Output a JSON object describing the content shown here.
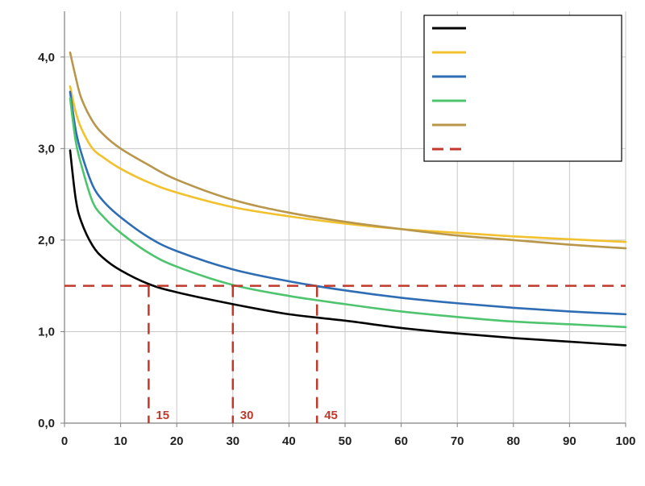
{
  "chart_data": {
    "type": "line",
    "title": "",
    "xlabel": "",
    "ylabel": "",
    "xlim": [
      0,
      100
    ],
    "ylim": [
      0,
      4.5
    ],
    "x_ticks": [
      0,
      10,
      20,
      30,
      40,
      50,
      60,
      70,
      80,
      90,
      100
    ],
    "x_tick_labels": [
      "0",
      "10",
      "20",
      "30",
      "40",
      "50",
      "60",
      "70",
      "80",
      "90",
      "100"
    ],
    "y_ticks": [
      0,
      1,
      2,
      3,
      4
    ],
    "y_tick_labels": [
      "0,0",
      "1,0",
      "2,0",
      "3,0",
      "4,0"
    ],
    "grid": true,
    "legend_position": "top-right",
    "x": [
      1,
      2,
      3,
      5,
      7,
      10,
      15,
      20,
      30,
      40,
      50,
      60,
      70,
      80,
      90,
      100
    ],
    "series": [
      {
        "color": "#000000",
        "style": "solid",
        "values": [
          2.98,
          2.45,
          2.2,
          1.94,
          1.8,
          1.67,
          1.52,
          1.43,
          1.3,
          1.19,
          1.12,
          1.04,
          0.98,
          0.93,
          0.89,
          0.85
        ]
      },
      {
        "color": "#f2c12e",
        "style": "solid",
        "values": [
          3.68,
          3.4,
          3.22,
          3.0,
          2.9,
          2.78,
          2.63,
          2.52,
          2.36,
          2.26,
          2.18,
          2.12,
          2.08,
          2.04,
          2.01,
          1.98
        ]
      },
      {
        "color": "#2e6db4",
        "style": "solid",
        "values": [
          3.62,
          3.2,
          2.95,
          2.6,
          2.42,
          2.25,
          2.03,
          1.88,
          1.68,
          1.55,
          1.45,
          1.37,
          1.31,
          1.26,
          1.22,
          1.19
        ]
      },
      {
        "color": "#4fc46f",
        "style": "solid",
        "values": [
          3.55,
          3.08,
          2.82,
          2.42,
          2.25,
          2.08,
          1.86,
          1.71,
          1.51,
          1.39,
          1.3,
          1.22,
          1.16,
          1.11,
          1.08,
          1.05
        ]
      },
      {
        "color": "#b8964a",
        "style": "solid",
        "values": [
          4.05,
          3.78,
          3.55,
          3.3,
          3.15,
          3.0,
          2.82,
          2.66,
          2.44,
          2.3,
          2.2,
          2.12,
          2.05,
          2.0,
          1.95,
          1.91
        ]
      },
      {
        "color": "#c0392b",
        "style": "dashed",
        "values": [
          1.5,
          1.5,
          1.5,
          1.5,
          1.5,
          1.5,
          1.5,
          1.5,
          1.5,
          1.5,
          1.5,
          1.5,
          1.5,
          1.5,
          1.5,
          1.5
        ]
      }
    ],
    "reference_lines": [
      {
        "x": 15,
        "y_top": 1.5,
        "label": "15"
      },
      {
        "x": 30,
        "y_top": 1.5,
        "label": "30"
      },
      {
        "x": 45,
        "y_top": 1.5,
        "label": "45"
      }
    ],
    "legend_entries": [
      {
        "series_index": 0
      },
      {
        "series_index": 1
      },
      {
        "series_index": 2
      },
      {
        "series_index": 3
      },
      {
        "series_index": 4
      },
      {
        "series_index": 5
      }
    ],
    "colors": {
      "grid": "#c8c8c8",
      "axis": "#808080",
      "annotation": "#c0392b"
    }
  }
}
